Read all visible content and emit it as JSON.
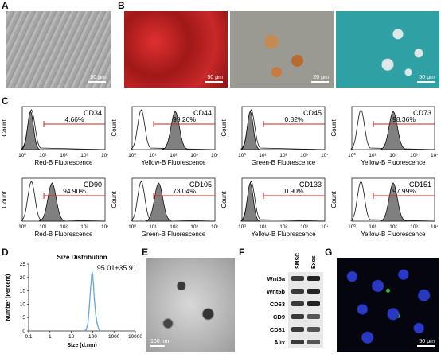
{
  "panels": {
    "A": {
      "label": "A",
      "scale": "50 μm"
    },
    "B": {
      "label": "B",
      "scales": [
        "50 μm",
        "20 μm",
        "50 μm"
      ]
    },
    "C": {
      "label": "C"
    },
    "D": {
      "label": "D"
    },
    "E": {
      "label": "E",
      "scale": "100 nm"
    },
    "F": {
      "label": "F"
    },
    "G": {
      "label": "G",
      "scale": "50 μm"
    }
  },
  "flow": {
    "ylabel": "Count",
    "xticks": [
      "10⁰",
      "10¹",
      "10²",
      "10³",
      "10⁴"
    ],
    "markers": [
      {
        "name": "CD34",
        "pct": "4.66%",
        "axis": "Red-B Fluorescence",
        "peak": 0.1,
        "pos": false
      },
      {
        "name": "CD44",
        "pct": "99.26%",
        "axis": "Yellow-B Fluorescence",
        "peak": 0.52,
        "pos": true
      },
      {
        "name": "CD45",
        "pct": "0.82%",
        "axis": "Green-B Fluorescence",
        "peak": 0.1,
        "pos": false
      },
      {
        "name": "CD73",
        "pct": "98.36%",
        "axis": "Yellow-B Fluorescence",
        "peak": 0.5,
        "pos": true
      },
      {
        "name": "CD90",
        "pct": "94.90%",
        "axis": "Red-B Fluorescence",
        "peak": 0.36,
        "pos": true
      },
      {
        "name": "CD105",
        "pct": "73.04%",
        "axis": "Green-B Fluorescence",
        "peak": 0.32,
        "pos": true
      },
      {
        "name": "CD133",
        "pct": "0.90%",
        "axis": "Yellow-B Fluorescence",
        "peak": 0.1,
        "pos": false
      },
      {
        "name": "CD151",
        "pct": "97.99%",
        "axis": "Yellow-B Fluorescence",
        "peak": 0.5,
        "pos": true
      }
    ]
  },
  "chart_data": {
    "type": "line",
    "title": "Size Distribution",
    "xlabel": "Size (d.nm)",
    "ylabel": "Number (Percent)",
    "annotation": "95.01±35.91",
    "xscale": "log",
    "xlim": [
      0.1,
      10000
    ],
    "ylim": [
      0,
      25
    ],
    "xticks": [
      "0.1",
      "1",
      "10",
      "100",
      "1000",
      "10000"
    ],
    "yticks": [
      "0",
      "5",
      "10",
      "15",
      "20",
      "25"
    ],
    "x": [
      40,
      50,
      60,
      70,
      80,
      90,
      95,
      100,
      110,
      120,
      140,
      160,
      190,
      220
    ],
    "y": [
      0,
      0.5,
      3,
      9,
      16,
      21,
      22,
      21,
      17,
      12,
      6,
      3,
      0.8,
      0
    ]
  },
  "blot": {
    "headers": [
      "SMSC",
      "Exos"
    ],
    "bands": [
      "Wnt5a",
      "Wnt5b",
      "CD63",
      "CD9",
      "CD81",
      "Alix"
    ]
  },
  "colors": {
    "line": "#6aa6d8",
    "red": "#cc2222",
    "fill": "#808080"
  }
}
